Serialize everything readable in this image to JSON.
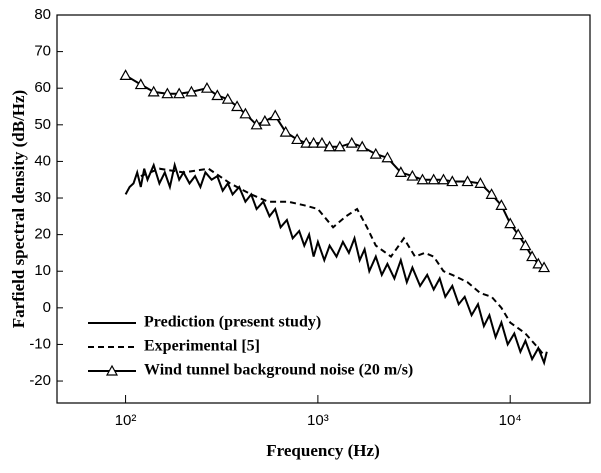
{
  "chart_data": {
    "type": "line",
    "xlabel": "Frequency (Hz)",
    "ylabel": "Farfield spectral density (dB/Hz)",
    "xscale": "log",
    "xlim": [
      44,
      26000
    ],
    "ylim": [
      -26,
      80
    ],
    "xticks": [
      {
        "value": 100,
        "label": "10²"
      },
      {
        "value": 1000,
        "label": "10³"
      },
      {
        "value": 10000,
        "label": "10⁴"
      }
    ],
    "yticks": [
      -20,
      -10,
      0,
      10,
      20,
      30,
      40,
      50,
      60,
      70,
      80
    ],
    "legend": "lower left",
    "series": [
      {
        "name": "Prediction (present study)",
        "color": "#000000",
        "linestyle": "solid",
        "x": [
          100,
          105,
          110,
          115,
          120,
          125,
          130,
          140,
          150,
          160,
          170,
          180,
          190,
          200,
          215,
          230,
          245,
          260,
          280,
          300,
          320,
          340,
          360,
          390,
          420,
          450,
          480,
          520,
          560,
          600,
          640,
          690,
          740,
          800,
          850,
          900,
          950,
          1000,
          1080,
          1150,
          1250,
          1350,
          1450,
          1550,
          1650,
          1750,
          1850,
          2000,
          2150,
          2300,
          2500,
          2700,
          2900,
          3100,
          3400,
          3700,
          4000,
          4300,
          4600,
          5000,
          5400,
          5800,
          6300,
          6800,
          7300,
          7800,
          8400,
          9000,
          9700,
          10500,
          11300,
          12000,
          13000,
          14000,
          15000,
          15500
        ],
        "values": [
          31,
          33,
          34,
          37,
          33,
          38,
          35,
          39,
          34,
          37,
          33,
          39,
          35,
          37,
          34,
          36,
          33,
          37,
          35,
          36,
          32,
          34,
          31,
          33,
          29,
          31,
          27,
          29,
          25,
          27,
          22,
          24,
          19,
          21,
          17,
          20,
          14,
          18,
          13,
          17,
          14,
          18,
          15,
          19,
          13,
          16,
          10,
          14,
          9,
          12,
          8,
          13,
          7,
          11,
          6,
          9,
          5,
          8,
          3,
          6,
          1,
          3,
          -2,
          1,
          -5,
          -2,
          -8,
          -4,
          -10,
          -7,
          -12,
          -9,
          -14,
          -11,
          -15,
          -12
        ]
      },
      {
        "name": "Experimental [5]",
        "color": "#000000",
        "linestyle": "dashed",
        "x": [
          120,
          150,
          200,
          270,
          350,
          450,
          550,
          700,
          850,
          1000,
          1200,
          1400,
          1600,
          1800,
          2000,
          2400,
          2800,
          3200,
          3600,
          4000,
          4500,
          5000,
          6000,
          7000,
          8000,
          9000,
          10000,
          12000,
          14000,
          15000
        ],
        "values": [
          36,
          38,
          37,
          38,
          34,
          31,
          29,
          29,
          28,
          27,
          22,
          25,
          27,
          22,
          17,
          14,
          19,
          14,
          15,
          14,
          10,
          9,
          7,
          4,
          3,
          0,
          -4,
          -7,
          -11,
          -13
        ]
      },
      {
        "name": "Wind tunnel background noise (20 m/s)",
        "color": "#000000",
        "linestyle": "solid",
        "marker": "triangle",
        "x": [
          100,
          120,
          140,
          165,
          190,
          220,
          265,
          300,
          340,
          380,
          420,
          480,
          530,
          600,
          680,
          780,
          870,
          950,
          1050,
          1150,
          1300,
          1500,
          1700,
          2000,
          2300,
          2700,
          3100,
          3500,
          4000,
          4500,
          5000,
          6000,
          7000,
          8000,
          9000,
          10000,
          11000,
          12000,
          13000,
          14000,
          15000
        ],
        "values": [
          63.5,
          61,
          59,
          58.5,
          58.5,
          59,
          60,
          58,
          57,
          55,
          53,
          50,
          51,
          52.5,
          48,
          46,
          45,
          45,
          45,
          44,
          44,
          45,
          44,
          42,
          41,
          37,
          36,
          35,
          35,
          35,
          34.5,
          34.5,
          34,
          31,
          28,
          23,
          20,
          17,
          14,
          12,
          11
        ]
      }
    ]
  }
}
